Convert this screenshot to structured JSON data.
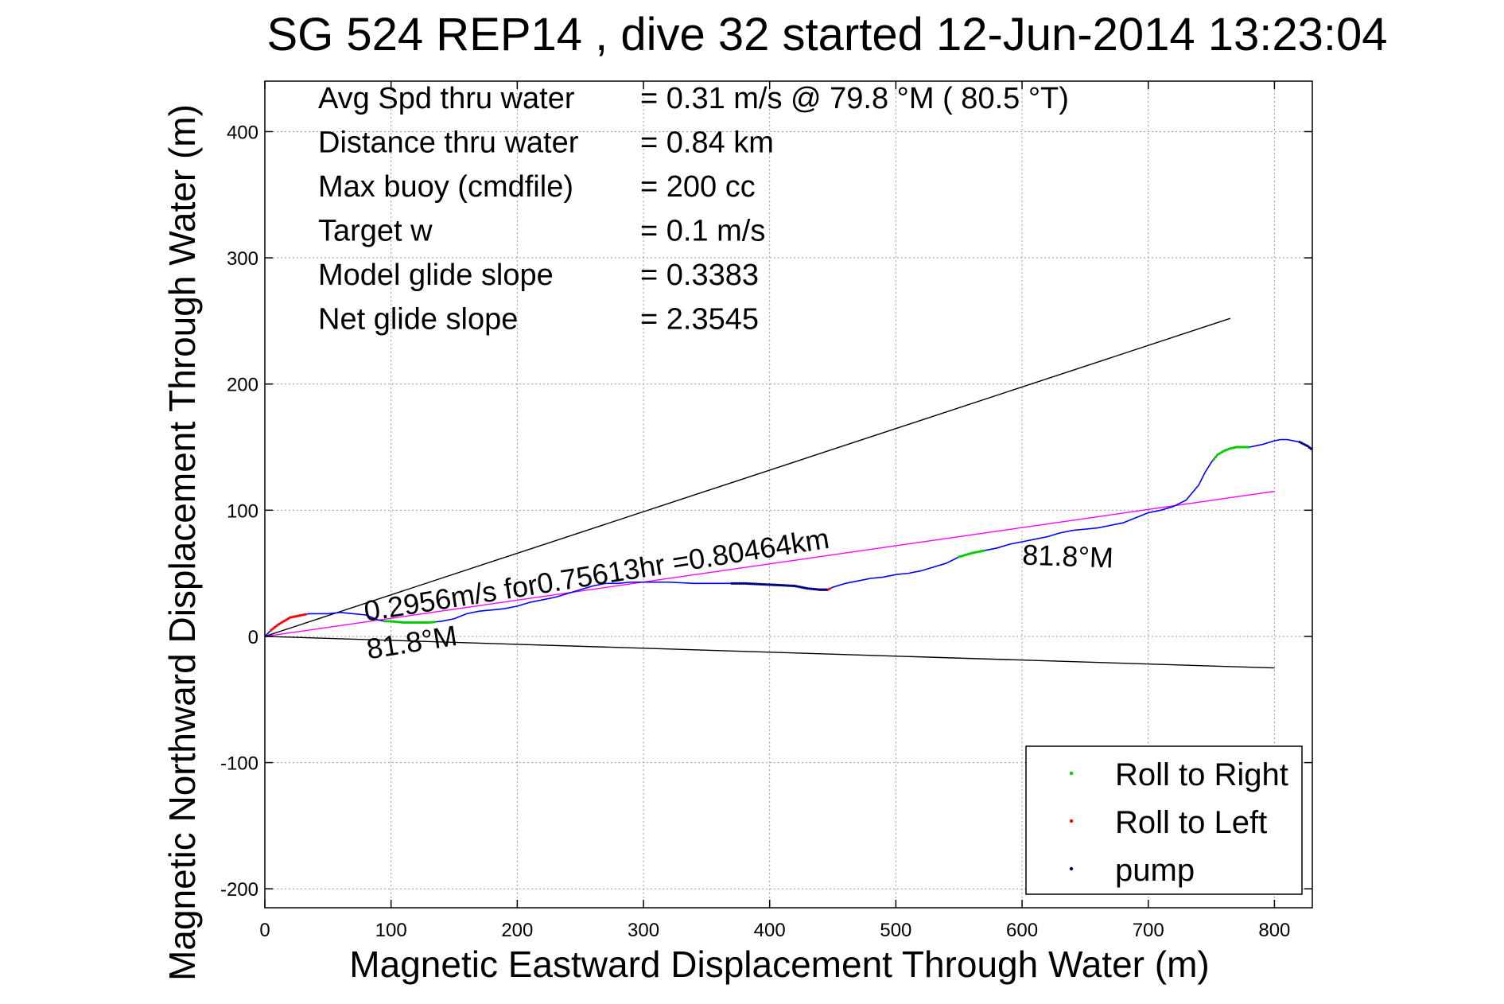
{
  "chart_data": {
    "type": "line",
    "title": "SG 524   REP14  , dive 32 started 12-Jun-2014 13:23:04",
    "xlabel": "Magnetic Eastward Displacement Through Water (m)",
    "ylabel": "Magnetic Northward Displacement Through Water (m)",
    "xlim": [
      0,
      830
    ],
    "ylim": [
      -215,
      440
    ],
    "xticks": [
      0,
      100,
      200,
      300,
      400,
      500,
      600,
      700,
      800
    ],
    "yticks": [
      -200,
      -100,
      0,
      100,
      200,
      300,
      400
    ],
    "grid": true,
    "legend_position": "bottom-right",
    "stats": [
      {
        "label": "Avg Spd thru water",
        "value": "=  0.31 m/s @  79.8 °M ( 80.5 °T)"
      },
      {
        "label": "Distance thru water",
        "value": "=  0.84 km"
      },
      {
        "label": "Max buoy (cmdfile)",
        "value": "= 200 cc"
      },
      {
        "label": "Target w",
        "value": "= 0.1 m/s"
      },
      {
        "label": "Model glide slope",
        "value": "= 0.3383"
      },
      {
        "label": "Net glide slope",
        "value": "= 2.3545"
      }
    ],
    "annotations": [
      {
        "text": "0.2956m/s for0.75613hr =0.80464km",
        "x": 80,
        "y": 12,
        "angle_deg": 9
      },
      {
        "text": "81.8°M",
        "x": 82,
        "y": -18,
        "angle_deg": 9
      },
      {
        "text": "81.8°M",
        "x": 600,
        "y": 57,
        "angle_deg": -2
      }
    ],
    "reference_lines": [
      {
        "id": "upper",
        "color": "#000000",
        "x": [
          0,
          765
        ],
        "y": [
          0,
          252
        ]
      },
      {
        "id": "lower",
        "color": "#000000",
        "x": [
          0,
          800
        ],
        "y": [
          0,
          -25
        ]
      },
      {
        "id": "mean",
        "color": "#ff00ff",
        "x": [
          0,
          800
        ],
        "y": [
          0,
          115
        ]
      }
    ],
    "track": {
      "color": "#0000ff",
      "x": [
        0,
        5,
        10,
        15,
        20,
        25,
        30,
        35,
        40,
        50,
        60,
        70,
        80,
        85,
        90,
        95,
        100,
        110,
        120,
        130,
        140,
        150,
        160,
        170,
        180,
        190,
        200,
        210,
        220,
        230,
        240,
        250,
        260,
        270,
        280,
        290,
        300,
        320,
        340,
        360,
        380,
        400,
        420,
        430,
        440,
        446,
        450,
        460,
        470,
        480,
        490,
        500,
        510,
        520,
        530,
        540,
        550,
        560,
        570,
        580,
        590,
        600,
        610,
        620,
        630,
        640,
        650,
        660,
        670,
        680,
        690,
        700,
        710,
        720,
        730,
        740,
        745,
        750,
        755,
        760,
        765,
        770,
        775,
        780,
        790,
        800,
        805,
        810,
        815,
        820,
        826,
        830
      ],
      "y": [
        0,
        5,
        9,
        12,
        15,
        16,
        17,
        18,
        18,
        18,
        19,
        18,
        17,
        15,
        13,
        12,
        12,
        11,
        11,
        11,
        12,
        14,
        18,
        20,
        21,
        22,
        24,
        27,
        29,
        31,
        34,
        37,
        40,
        42,
        42,
        43,
        43,
        43,
        42,
        42,
        42,
        41,
        40,
        38,
        37,
        37,
        39,
        42,
        44,
        46,
        47,
        49,
        50,
        52,
        55,
        58,
        63,
        66,
        68,
        70,
        73,
        75,
        77,
        79,
        82,
        84,
        85,
        86,
        88,
        90,
        94,
        98,
        100,
        103,
        108,
        120,
        130,
        138,
        144,
        147,
        149,
        150,
        150,
        150,
        152,
        155,
        156,
        156,
        155,
        154,
        151,
        148
      ]
    },
    "series": [
      {
        "name": "Roll to Right",
        "color": "#00cc00",
        "ranges": [
          [
            95,
            135
          ],
          [
            550,
            570
          ],
          [
            752,
            780
          ]
        ]
      },
      {
        "name": "Roll to Left",
        "color": "#ff0000",
        "ranges": [
          [
            5,
            32
          ],
          [
            440,
            448
          ],
          [
            826,
            830
          ]
        ]
      },
      {
        "name": "pump",
        "color": "#000080",
        "ranges": [
          [
            370,
            446
          ],
          [
            820,
            830
          ]
        ]
      }
    ]
  }
}
